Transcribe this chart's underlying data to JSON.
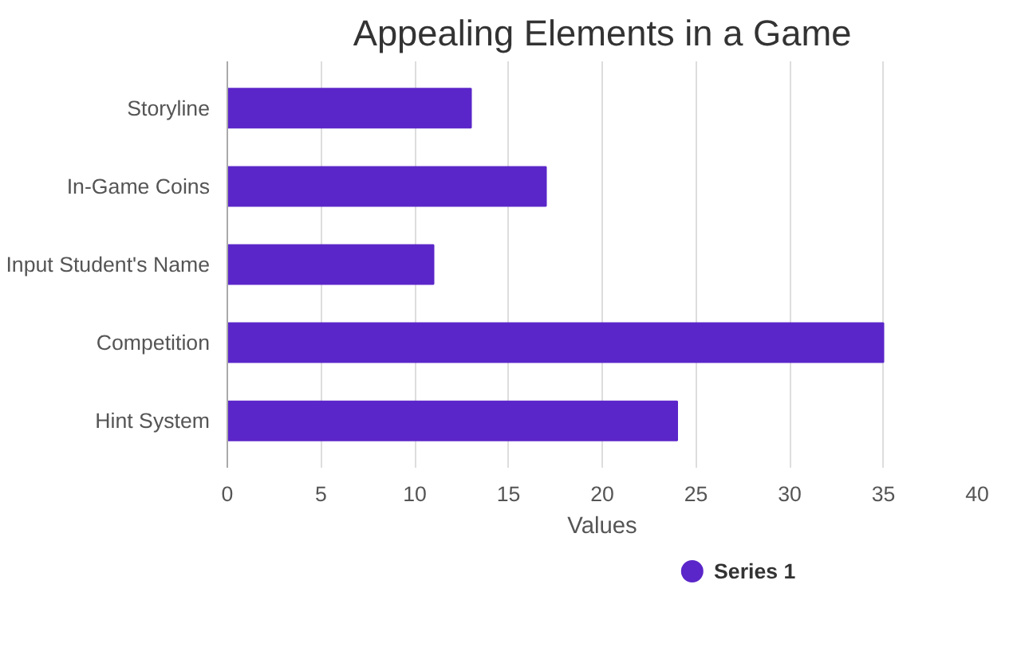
{
  "chart_data": {
    "type": "bar",
    "orientation": "horizontal",
    "title": "Appealing Elements in a Game",
    "xlabel": "Values",
    "categories": [
      "Storyline",
      "In-Game Coins",
      "Input Student's Name",
      "Competition",
      "Hint System"
    ],
    "series": [
      {
        "name": "Series 1",
        "color": "#5b26c9",
        "values": [
          13,
          17,
          11,
          35,
          24
        ]
      }
    ],
    "xlim": [
      0,
      40
    ],
    "xticks": [
      0,
      5,
      10,
      15,
      20,
      25,
      30,
      35,
      40
    ],
    "grid": "x",
    "legend": "bottom"
  }
}
